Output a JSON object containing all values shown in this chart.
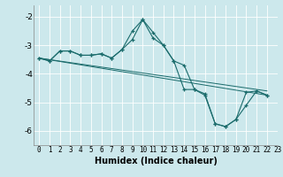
{
  "xlabel": "Humidex (Indice chaleur)",
  "xlim": [
    -0.5,
    23
  ],
  "ylim": [
    -6.5,
    -1.6
  ],
  "yticks": [
    -6,
    -5,
    -4,
    -3,
    -2
  ],
  "xticks": [
    0,
    1,
    2,
    3,
    4,
    5,
    6,
    7,
    8,
    9,
    10,
    11,
    12,
    13,
    14,
    15,
    16,
    17,
    18,
    19,
    20,
    21,
    22,
    23
  ],
  "bg_color": "#cce8ec",
  "line_color": "#1a6b6b",
  "grid_color": "#ffffff",
  "lines": [
    {
      "x": [
        0,
        1,
        2,
        3,
        4,
        5,
        6,
        7,
        8,
        9,
        10,
        11,
        12,
        13,
        14,
        15,
        16,
        17,
        18,
        19,
        20,
        21,
        22
      ],
      "y": [
        -3.45,
        -3.55,
        -3.2,
        -3.2,
        -3.35,
        -3.35,
        -3.3,
        -3.45,
        -3.15,
        -2.5,
        -2.1,
        -2.55,
        -3.0,
        -3.55,
        -3.7,
        -4.55,
        -4.7,
        -5.75,
        -5.85,
        -5.6,
        -4.65,
        -4.6,
        -4.75
      ],
      "marker": true
    },
    {
      "x": [
        0,
        1,
        2,
        3,
        4,
        5,
        6,
        7,
        8,
        9,
        10,
        11,
        12,
        13,
        14,
        15,
        16,
        17,
        18,
        19,
        20,
        21,
        22
      ],
      "y": [
        -3.45,
        -3.55,
        -3.2,
        -3.2,
        -3.35,
        -3.35,
        -3.3,
        -3.45,
        -3.15,
        -2.8,
        -2.1,
        -2.75,
        -3.0,
        -3.55,
        -4.55,
        -4.55,
        -4.75,
        -5.75,
        -5.85,
        -5.6,
        -5.1,
        -4.6,
        -4.75
      ],
      "marker": true
    },
    {
      "x": [
        0,
        22
      ],
      "y": [
        -3.45,
        -4.6
      ],
      "marker": false
    },
    {
      "x": [
        0,
        22
      ],
      "y": [
        -3.45,
        -4.75
      ],
      "marker": false
    }
  ]
}
